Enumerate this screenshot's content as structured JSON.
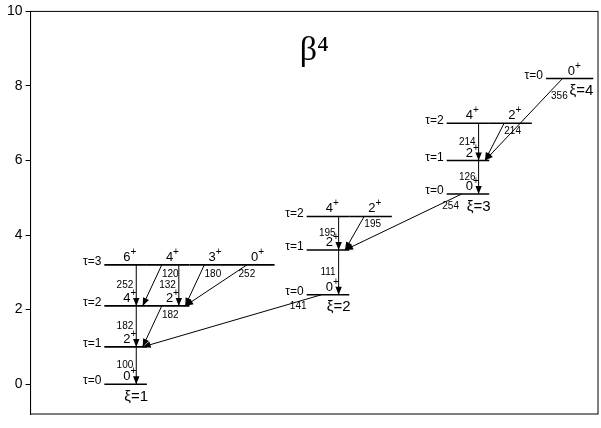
{
  "chart_data": {
    "type": "level_scheme",
    "title": "β⁴",
    "ylim": [
      -0.8,
      10
    ],
    "yticks": [
      0,
      2,
      4,
      6,
      8,
      10
    ],
    "bands": [
      {
        "label": "ξ=1",
        "rows": [
          {
            "label": "τ=0",
            "energy": 0,
            "levels": [
              "0+"
            ]
          },
          {
            "label": "τ=1",
            "energy": 1.0,
            "levels": [
              "2+"
            ]
          },
          {
            "label": "τ=2",
            "energy": 2.1,
            "levels": [
              "4+",
              "2+"
            ]
          },
          {
            "label": "τ=3",
            "energy": 3.2,
            "levels": [
              "6+",
              "4+",
              "3+",
              "0+"
            ]
          }
        ]
      },
      {
        "label": "ξ=2",
        "rows": [
          {
            "label": "τ=0",
            "energy": 2.4,
            "levels": [
              "0+"
            ]
          },
          {
            "label": "τ=1",
            "energy": 3.6,
            "levels": [
              "2+"
            ]
          },
          {
            "label": "τ=2",
            "energy": 4.5,
            "levels": [
              "4+",
              "2+"
            ]
          }
        ]
      },
      {
        "label": "ξ=3",
        "rows": [
          {
            "label": "τ=0",
            "energy": 5.1,
            "levels": [
              "0+"
            ]
          },
          {
            "label": "τ=1",
            "energy": 6.0,
            "levels": [
              "2+"
            ]
          },
          {
            "label": "τ=2",
            "energy": 7.0,
            "levels": [
              "4+",
              "2+"
            ]
          }
        ]
      },
      {
        "label": "ξ=4",
        "rows": [
          {
            "label": "τ=0",
            "energy": 8.2,
            "levels": [
              "0+"
            ]
          }
        ]
      }
    ],
    "transitions": [
      {
        "from": {
          "band": "ξ=1",
          "row": "τ=1",
          "level": "2+"
        },
        "to": {
          "band": "ξ=1",
          "row": "τ=0",
          "level": "0+"
        },
        "value": 100
      },
      {
        "from": {
          "band": "ξ=1",
          "row": "τ=2",
          "level": "4+"
        },
        "to": {
          "band": "ξ=1",
          "row": "τ=1",
          "level": "2+"
        },
        "value": 182
      },
      {
        "from": {
          "band": "ξ=1",
          "row": "τ=2",
          "level": "2+"
        },
        "to": {
          "band": "ξ=1",
          "row": "τ=1",
          "level": "2+"
        },
        "value": 182
      },
      {
        "from": {
          "band": "ξ=1",
          "row": "τ=3",
          "level": "6+"
        },
        "to": {
          "band": "ξ=1",
          "row": "τ=2",
          "level": "4+"
        },
        "value": 252
      },
      {
        "from": {
          "band": "ξ=1",
          "row": "τ=3",
          "level": "4+"
        },
        "to": {
          "band": "ξ=1",
          "row": "τ=2",
          "level": "4+"
        },
        "value": 120
      },
      {
        "from": {
          "band": "ξ=1",
          "row": "τ=3",
          "level": "4+"
        },
        "to": {
          "band": "ξ=1",
          "row": "τ=2",
          "level": "2+"
        },
        "value": 132
      },
      {
        "from": {
          "band": "ξ=1",
          "row": "τ=3",
          "level": "3+"
        },
        "to": {
          "band": "ξ=1",
          "row": "τ=2",
          "level": "2+"
        },
        "value": 180
      },
      {
        "from": {
          "band": "ξ=1",
          "row": "τ=3",
          "level": "0+"
        },
        "to": {
          "band": "ξ=1",
          "row": "τ=2",
          "level": "2+"
        },
        "value": 252
      },
      {
        "from": {
          "band": "ξ=2",
          "row": "τ=0",
          "level": "0+"
        },
        "to": {
          "band": "ξ=1",
          "row": "τ=1",
          "level": "2+"
        },
        "value": 141
      },
      {
        "from": {
          "band": "ξ=2",
          "row": "τ=1",
          "level": "2+"
        },
        "to": {
          "band": "ξ=2",
          "row": "τ=0",
          "level": "0+"
        },
        "value": 111
      },
      {
        "from": {
          "band": "ξ=2",
          "row": "τ=2",
          "level": "4+"
        },
        "to": {
          "band": "ξ=2",
          "row": "τ=1",
          "level": "2+"
        },
        "value": 195
      },
      {
        "from": {
          "band": "ξ=2",
          "row": "τ=2",
          "level": "2+"
        },
        "to": {
          "band": "ξ=2",
          "row": "τ=1",
          "level": "2+"
        },
        "value": 195
      },
      {
        "from": {
          "band": "ξ=3",
          "row": "τ=0",
          "level": "0+"
        },
        "to": {
          "band": "ξ=2",
          "row": "τ=1",
          "level": "2+"
        },
        "value": 254
      },
      {
        "from": {
          "band": "ξ=3",
          "row": "τ=1",
          "level": "2+"
        },
        "to": {
          "band": "ξ=3",
          "row": "τ=0",
          "level": "0+"
        },
        "value": 126
      },
      {
        "from": {
          "band": "ξ=3",
          "row": "τ=2",
          "level": "4+"
        },
        "to": {
          "band": "ξ=3",
          "row": "τ=1",
          "level": "2+"
        },
        "value": 214
      },
      {
        "from": {
          "band": "ξ=3",
          "row": "τ=2",
          "level": "2+"
        },
        "to": {
          "band": "ξ=3",
          "row": "τ=1",
          "level": "2+"
        },
        "value": 214
      },
      {
        "from": {
          "band": "ξ=4",
          "row": "τ=0",
          "level": "0+"
        },
        "to": {
          "band": "ξ=3",
          "row": "τ=1",
          "level": "2+"
        },
        "value": 356
      }
    ]
  }
}
